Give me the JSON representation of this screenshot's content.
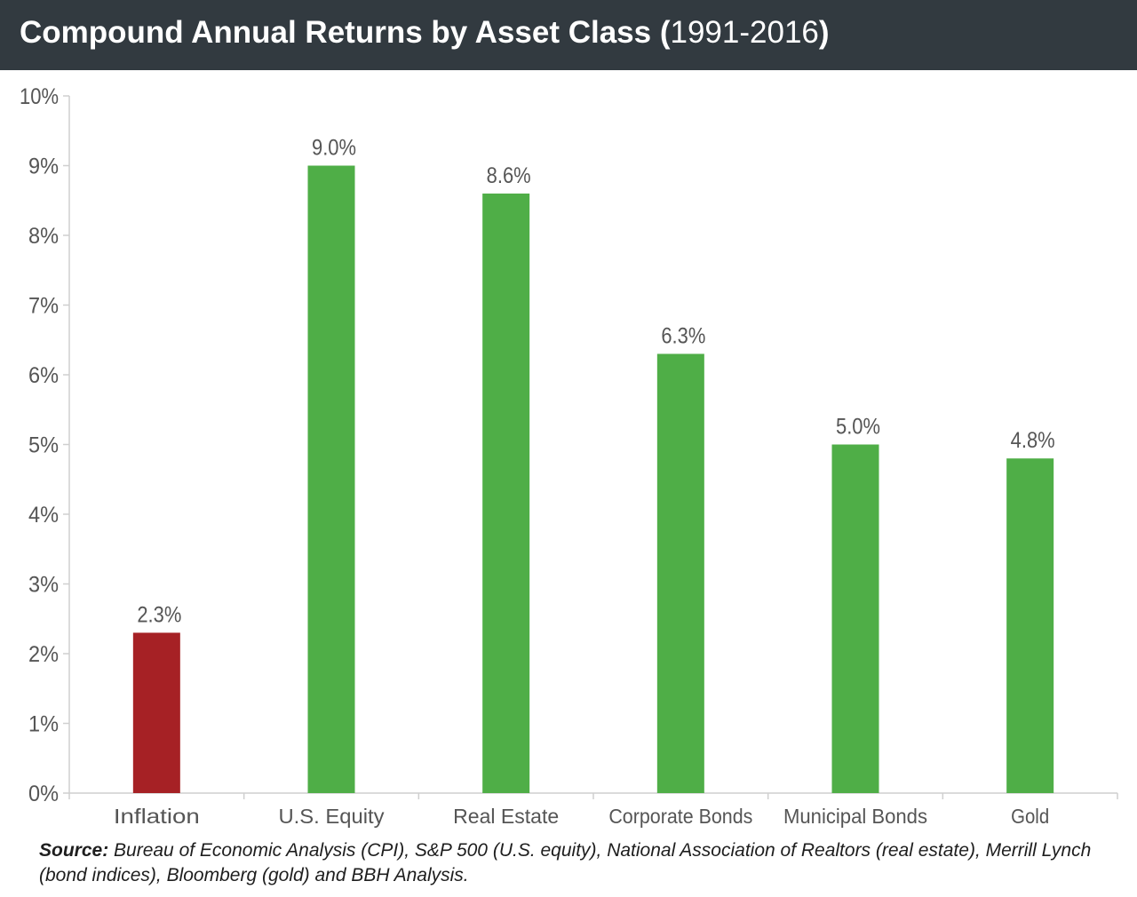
{
  "title": {
    "main": "Compound Annual Returns by Asset Class",
    "open_paren": " (",
    "years": "1991-2016",
    "close_paren": ")"
  },
  "colors": {
    "title_bar": "#323a40",
    "inflation_bar": "#a62125",
    "asset_bar": "#4fae47",
    "axis_text": "#555555"
  },
  "chart_data": {
    "type": "bar",
    "title": "Compound Annual Returns by Asset Class (1991-2016)",
    "categories": [
      "Inflation",
      "U.S. Equity",
      "Real Estate",
      "Corporate Bonds",
      "Municipal Bonds",
      "Gold"
    ],
    "values": [
      2.3,
      9.0,
      8.6,
      6.3,
      5.0,
      4.8
    ],
    "value_labels": [
      "2.3%",
      "9.0%",
      "8.6%",
      "6.3%",
      "5.0%",
      "4.8%"
    ],
    "bar_colors": [
      "#a62125",
      "#4fae47",
      "#4fae47",
      "#4fae47",
      "#4fae47",
      "#4fae47"
    ],
    "ylim": [
      0,
      10
    ],
    "yticks": [
      0,
      1,
      2,
      3,
      4,
      5,
      6,
      7,
      8,
      9,
      10
    ],
    "ytick_labels": [
      "0%",
      "1%",
      "2%",
      "3%",
      "4%",
      "5%",
      "6%",
      "7%",
      "8%",
      "9%",
      "10%"
    ],
    "xlabel": "",
    "ylabel": "",
    "grid": false,
    "legend": "none"
  },
  "source": {
    "label": "Source:",
    "text": " Bureau of Economic Analysis (CPI), S&P 500 (U.S. equity), National Association of Realtors (real estate), Merrill Lynch (bond indices), Bloomberg (gold) and BBH Analysis."
  }
}
